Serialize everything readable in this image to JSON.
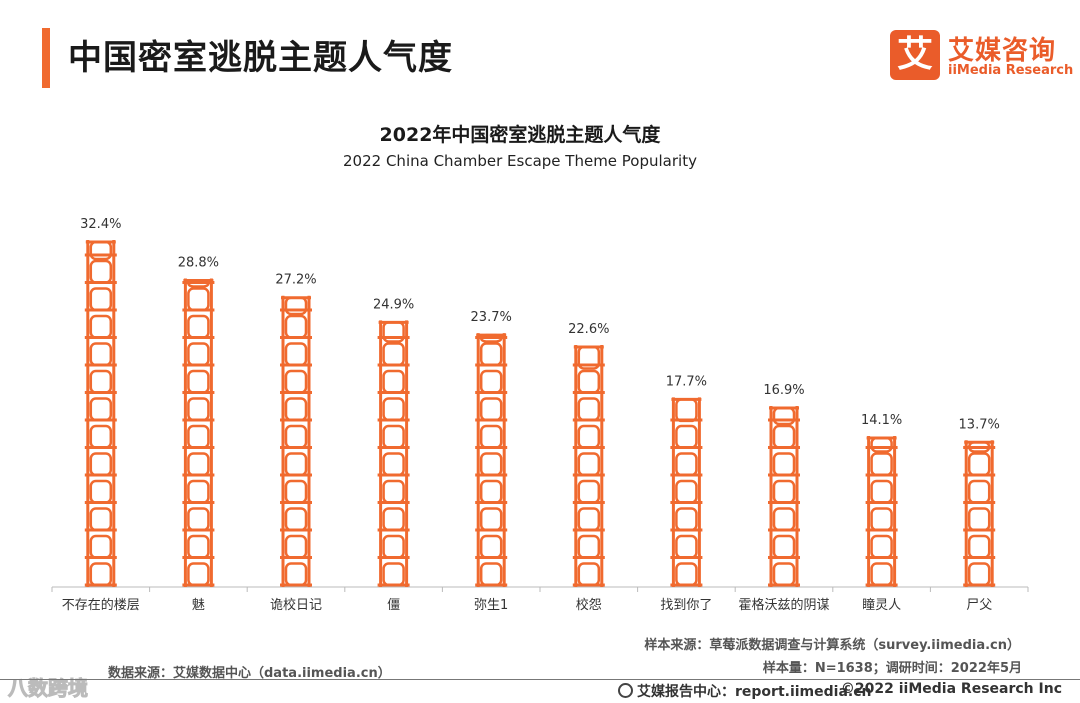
{
  "page_title": "中国密室逃脱主题人气度",
  "logo": {
    "mark": "艾",
    "cn": "艾媒咨询",
    "en": "iiMedia Research"
  },
  "chart_data": {
    "type": "bar",
    "title": "2022年中国密室逃脱主题人气度",
    "subtitle": "2022 China Chamber Escape Theme Popularity",
    "categories": [
      "不存在的楼层",
      "魅",
      "诡校日记",
      "僵",
      "弥生1",
      "校怨",
      "找到你了",
      "霍格沃兹的阴谋",
      "瞳灵人",
      "尸父"
    ],
    "values": [
      32.4,
      28.8,
      27.2,
      24.9,
      23.7,
      22.6,
      17.7,
      16.9,
      14.1,
      13.7
    ],
    "value_labels": [
      "32.4%",
      "28.8%",
      "27.2%",
      "24.9%",
      "23.7%",
      "22.6%",
      "17.7%",
      "16.9%",
      "14.1%",
      "13.7%"
    ],
    "unit": "%",
    "xlabel": "",
    "ylabel": "",
    "ylim": [
      0,
      35
    ],
    "grid": false,
    "legend": "none",
    "bar_color": "#f06a2f"
  },
  "notes": {
    "sample_source": "样本来源：草莓派数据调查与计算系统（survey.iimedia.cn）",
    "sample_size": "样本量：N=1638；调研时间：2022年5月",
    "data_source": "数据来源：艾媒数据中心（data.iimedia.cn）"
  },
  "watermark": "八数跨境",
  "footer": {
    "report": "艾媒报告中心：report.iimedia.cn",
    "copyright": "©2022  iiMedia Research  Inc"
  }
}
